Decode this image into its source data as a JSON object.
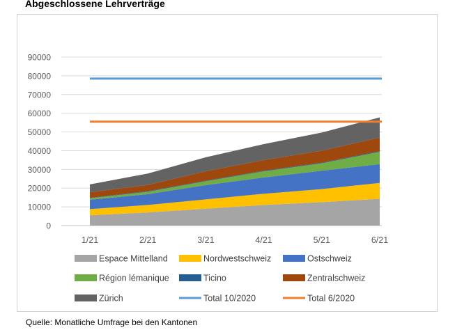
{
  "title": "Abgeschlossene Lehrverträge",
  "source": "Quelle: Monatliche Umfrage bei den Kantonen",
  "chart_data": {
    "type": "area",
    "stacked": true,
    "categories": [
      "1/21",
      "2/21",
      "3/21",
      "4/21",
      "5/21",
      "6/21"
    ],
    "ylim": [
      0,
      90000
    ],
    "yticks": [
      0,
      10000,
      20000,
      30000,
      40000,
      50000,
      60000,
      70000,
      80000,
      90000
    ],
    "ytick_labels": [
      "0",
      "10000",
      "20000",
      "30000",
      "40000",
      "50000",
      "60000",
      "70000",
      "80000",
      "90000"
    ],
    "grid": true,
    "legend_position": "bottom",
    "series": [
      {
        "name": "Espace Mittelland",
        "color": "#a5a5a5",
        "values": [
          5500,
          7000,
          9000,
          11000,
          12500,
          14300
        ]
      },
      {
        "name": "Nordwestschweiz",
        "color": "#ffc000",
        "values": [
          3300,
          4000,
          5000,
          6000,
          7000,
          8500
        ]
      },
      {
        "name": "Ostschweiz",
        "color": "#4472c4",
        "values": [
          5000,
          5800,
          7600,
          8700,
          9800,
          10000
        ]
      },
      {
        "name": "Région lémanique",
        "color": "#70ad47",
        "values": [
          800,
          1300,
          2100,
          3300,
          4000,
          6600
        ]
      },
      {
        "name": "Ticino",
        "color": "#255e91",
        "values": [
          200,
          300,
          300,
          300,
          300,
          400
        ]
      },
      {
        "name": "Zentralschweiz",
        "color": "#9e480e",
        "values": [
          3000,
          3300,
          5000,
          5700,
          6400,
          7200
        ]
      },
      {
        "name": "Zürich",
        "color": "#636363",
        "values": [
          4200,
          6100,
          7500,
          8500,
          9700,
          10800
        ]
      }
    ],
    "reference_lines": [
      {
        "name": "Total 10/2020",
        "color": "#5b9bd5",
        "value": 78500
      },
      {
        "name": "Total 6/2020",
        "color": "#ed7d31",
        "value": 55500
      }
    ]
  }
}
